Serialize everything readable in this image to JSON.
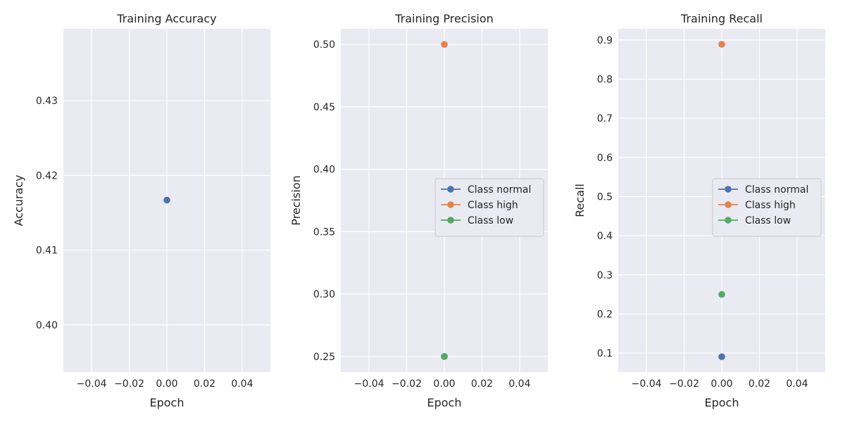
{
  "chart_data": [
    {
      "type": "scatter",
      "title": "Training Accuracy",
      "xlabel": "Epoch",
      "ylabel": "Accuracy",
      "xlim": [
        -0.055,
        0.055
      ],
      "ylim": [
        0.3937,
        0.4396
      ],
      "xticks": [
        -0.04,
        -0.02,
        0.0,
        0.02,
        0.04
      ],
      "xtick_labels": [
        "−0.04",
        "−0.02",
        "0.00",
        "0.02",
        "0.04"
      ],
      "yticks": [
        0.4,
        0.41,
        0.42,
        0.43
      ],
      "ytick_labels": [
        "0.40",
        "0.41",
        "0.42",
        "0.43"
      ],
      "grid": true,
      "legend": null,
      "series": [
        {
          "name": "",
          "color": "#4c72b0",
          "x": [
            0
          ],
          "y": [
            0.4167
          ]
        }
      ]
    },
    {
      "type": "scatter",
      "title": "Training Precision",
      "xlabel": "Epoch",
      "ylabel": "Precision",
      "xlim": [
        -0.055,
        0.055
      ],
      "ylim": [
        0.2375,
        0.5125
      ],
      "xticks": [
        -0.04,
        -0.02,
        0.0,
        0.02,
        0.04
      ],
      "xtick_labels": [
        "−0.04",
        "−0.02",
        "0.00",
        "0.02",
        "0.04"
      ],
      "yticks": [
        0.25,
        0.3,
        0.35,
        0.4,
        0.45,
        0.5
      ],
      "ytick_labels": [
        "0.25",
        "0.30",
        "0.35",
        "0.40",
        "0.45",
        "0.50"
      ],
      "grid": true,
      "legend": "center-right",
      "series": [
        {
          "name": "Class normal",
          "color": "#4c72b0",
          "x": [
            0
          ],
          "y": [
            0.25
          ]
        },
        {
          "name": "Class high",
          "color": "#dd8452",
          "x": [
            0
          ],
          "y": [
            0.5
          ]
        },
        {
          "name": "Class low",
          "color": "#55a868",
          "x": [
            0
          ],
          "y": [
            0.25
          ]
        }
      ]
    },
    {
      "type": "scatter",
      "title": "Training Recall",
      "xlabel": "Epoch",
      "ylabel": "Recall",
      "xlim": [
        -0.055,
        0.055
      ],
      "ylim": [
        0.0516,
        0.9285
      ],
      "xticks": [
        -0.04,
        -0.02,
        0.0,
        0.02,
        0.04
      ],
      "xtick_labels": [
        "−0.04",
        "−0.02",
        "0.00",
        "0.02",
        "0.04"
      ],
      "yticks": [
        0.1,
        0.2,
        0.3,
        0.4,
        0.5,
        0.6,
        0.7,
        0.8,
        0.9
      ],
      "ytick_labels": [
        "0.1",
        "0.2",
        "0.3",
        "0.4",
        "0.5",
        "0.6",
        "0.7",
        "0.8",
        "0.9"
      ],
      "grid": true,
      "legend": "center-right",
      "series": [
        {
          "name": "Class normal",
          "color": "#4c72b0",
          "x": [
            0
          ],
          "y": [
            0.0909
          ]
        },
        {
          "name": "Class high",
          "color": "#dd8452",
          "x": [
            0
          ],
          "y": [
            0.8889
          ]
        },
        {
          "name": "Class low",
          "color": "#55a868",
          "x": [
            0
          ],
          "y": [
            0.25
          ]
        }
      ]
    }
  ]
}
